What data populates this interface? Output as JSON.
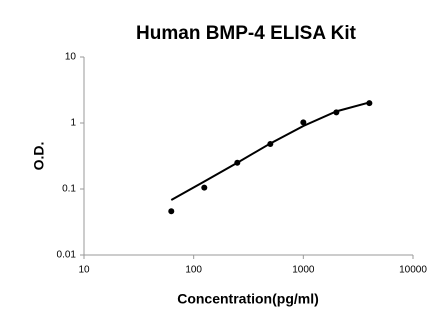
{
  "chart_data": {
    "type": "scatter",
    "title": "Human BMP-4 ELISA Kit",
    "xlabel": "Concentration(pg/ml)",
    "ylabel": "O.D.",
    "xscale": "log",
    "yscale": "log",
    "xlim": [
      10,
      10000
    ],
    "xticks": [
      10,
      100,
      1000,
      10000
    ],
    "ylim": [
      0.01,
      10
    ],
    "yticks": [
      0.01,
      0.1,
      1,
      10
    ],
    "series": [
      {
        "style": "points",
        "color": "#000000",
        "x": [
          62.5,
          125,
          250,
          500,
          1000,
          2000,
          4000
        ],
        "values": [
          0.046,
          0.105,
          0.25,
          0.48,
          1.02,
          1.45,
          2.0
        ]
      },
      {
        "style": "line",
        "color": "#000000",
        "x": [
          62.5,
          125,
          250,
          500,
          1000,
          2000,
          4000
        ],
        "values": [
          0.068,
          0.13,
          0.25,
          0.49,
          0.9,
          1.5,
          2.05
        ]
      }
    ]
  }
}
